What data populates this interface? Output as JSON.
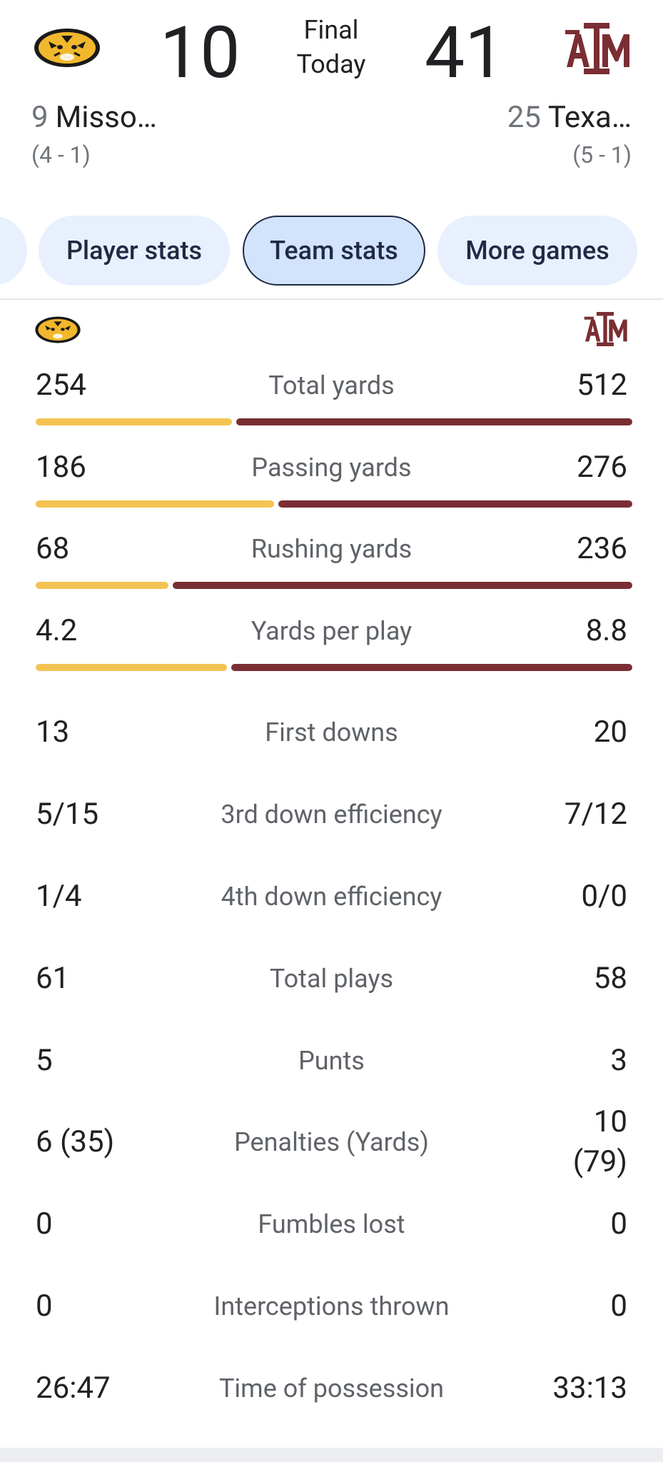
{
  "game": {
    "status_line1": "Final",
    "status_line2": "Today",
    "home": {
      "score": "10",
      "rank": "9",
      "name": "Misso…",
      "record": "(4 - 1)",
      "logo_icon": "missouri-tiger-logo",
      "color": "#f3c453"
    },
    "away": {
      "score": "41",
      "rank": "25",
      "name": "Texa…",
      "record": "(5 - 1)",
      "logo_icon": "texas-am-logo",
      "color": "#7a2e33"
    }
  },
  "tabs": [
    {
      "label": "Player stats",
      "selected": false
    },
    {
      "label": "Team stats",
      "selected": true
    },
    {
      "label": "More games",
      "selected": false
    }
  ],
  "stats": [
    {
      "label": "Total yards",
      "home": "254",
      "away": "512",
      "bar": true,
      "home_value": 254,
      "away_value": 512
    },
    {
      "label": "Passing yards",
      "home": "186",
      "away": "276",
      "bar": true,
      "home_value": 186,
      "away_value": 276
    },
    {
      "label": "Rushing yards",
      "home": "68",
      "away": "236",
      "bar": true,
      "home_value": 68,
      "away_value": 236
    },
    {
      "label": "Yards per play",
      "home": "4.2",
      "away": "8.8",
      "bar": true,
      "home_value": 4.2,
      "away_value": 8.8
    },
    {
      "label": "First downs",
      "home": "13",
      "away": "20",
      "bar": false
    },
    {
      "label": "3rd down efficiency",
      "home": "5/15",
      "away": "7/12",
      "bar": false
    },
    {
      "label": "4th down efficiency",
      "home": "1/4",
      "away": "0/0",
      "bar": false
    },
    {
      "label": "Total plays",
      "home": "61",
      "away": "58",
      "bar": false
    },
    {
      "label": "Punts",
      "home": "5",
      "away": "3",
      "bar": false
    },
    {
      "label": "Penalties (Yards)",
      "home": "6 (35)",
      "away": "10 (79)",
      "away_line1": "10",
      "away_line2": "(79)",
      "bar": false
    },
    {
      "label": "Fumbles lost",
      "home": "0",
      "away": "0",
      "bar": false
    },
    {
      "label": "Interceptions thrown",
      "home": "0",
      "away": "0",
      "bar": false
    },
    {
      "label": "Time of possession",
      "home": "26:47",
      "away": "33:13",
      "bar": false
    }
  ]
}
